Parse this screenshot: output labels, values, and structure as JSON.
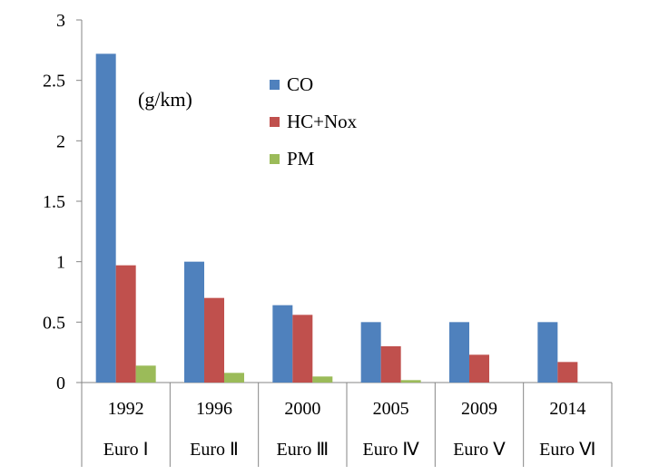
{
  "chart_data": {
    "type": "bar",
    "unit_label": "(g/km)",
    "categories": [
      {
        "year": "1992",
        "standard": "Euro Ⅰ"
      },
      {
        "year": "1996",
        "standard": "Euro Ⅱ"
      },
      {
        "year": "2000",
        "standard": "Euro Ⅲ"
      },
      {
        "year": "2005",
        "standard": "Euro Ⅳ"
      },
      {
        "year": "2009",
        "standard": "Euro Ⅴ"
      },
      {
        "year": "2014",
        "standard": "Euro Ⅵ"
      }
    ],
    "series": [
      {
        "name": "CO",
        "color": "#4f81bd",
        "values": [
          2.72,
          1.0,
          0.64,
          0.5,
          0.5,
          0.5
        ]
      },
      {
        "name": "HC+Nox",
        "color": "#c0504d",
        "values": [
          0.97,
          0.7,
          0.56,
          0.3,
          0.23,
          0.17
        ]
      },
      {
        "name": "PM",
        "color": "#9bbb59",
        "values": [
          0.14,
          0.08,
          0.05,
          0.02,
          0,
          0
        ]
      }
    ],
    "ylim": [
      0,
      3
    ],
    "yticks": [
      "0",
      "0.5",
      "1",
      "1.5",
      "2",
      "2.5",
      "3"
    ],
    "legend_position": "top-center",
    "grid": false
  }
}
